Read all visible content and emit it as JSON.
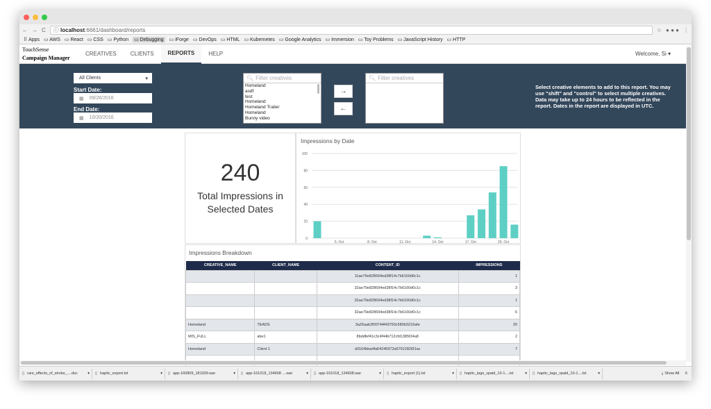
{
  "browser": {
    "url_host": "localhost",
    "url_rest": ":6661/dashboard/reports",
    "bookmarks": [
      "Apps",
      "AWS",
      "React",
      "CSS",
      "Python",
      "Debugging",
      "iForge",
      "DevOps",
      "HTML",
      "Kubernetes",
      "Google Analytics",
      "Immersion",
      "Toy Problems",
      "JavaScript History",
      "HTTP"
    ],
    "active_bookmark": "Debugging"
  },
  "app": {
    "logo_line1": "TouchSense",
    "logo_line2": "Campaign Manager",
    "nav": [
      "CREATIVES",
      "CLIENTS",
      "REPORTS",
      "HELP"
    ],
    "active_nav": "REPORTS",
    "welcome": "Welcome, Si"
  },
  "filters": {
    "client_select": "All Clients",
    "start_label": "Start Date:",
    "start_value": "09/26/2016",
    "end_label": "End Date:",
    "end_value": "10/20/2016",
    "left_filter_placeholder": "Filter creatives",
    "right_filter_placeholder": "Filter creatives",
    "creatives": [
      "Homeland",
      "asdf",
      "test",
      "Homeland",
      "Homeland Trailer",
      "Homeland",
      "Bunny video"
    ],
    "add_arrow": "→",
    "remove_arrow": "←",
    "help_text": "Select creative elements to add to this report. You may use \"shift\" and \"control\" to select multiple creatives. Data may take up to 24 hours to be reflected in the report. Dates in the report are displayed in UTC."
  },
  "summary": {
    "total": "240",
    "label": "Total Impressions in Selected Dates"
  },
  "chart_data": {
    "type": "bar",
    "title": "Impressions by Date",
    "ylim": [
      0,
      100
    ],
    "yticks": [
      0,
      20,
      40,
      60,
      80,
      100
    ],
    "xticks": [
      "5. Oct",
      "8. Oct",
      "11. Oct",
      "14. Oct",
      "17. Oct",
      "20. Oct"
    ],
    "x": [
      "3. Oct",
      "13. Oct",
      "14. Oct",
      "17. Oct",
      "18. Oct",
      "19. Oct",
      "20. Oct",
      "21. Oct"
    ],
    "values": [
      20,
      3,
      1,
      27,
      34,
      54,
      85,
      16
    ],
    "grid": true,
    "color": "#5ecfc4"
  },
  "breakdown": {
    "title": "Impressions Breakdown",
    "columns": [
      "CREATIVE_NAME",
      "CLIENT_NAME",
      "CONTENT_ID",
      "IMPRESSIONS"
    ],
    "rows": [
      [
        "",
        "",
        "11ae79e828694ed38f14c7b6160d0c1c",
        "1"
      ],
      [
        "",
        "",
        "32ae79e828694ed38f14c7b6160d0c1c",
        "3"
      ],
      [
        "",
        "",
        "32ae79e828694ed38f14c7b6160d0c1c",
        "1"
      ],
      [
        "",
        "",
        "32ae79e828694ed38f14c7b6160d0c1c",
        "6"
      ],
      [
        "Homeland",
        "TEADS",
        "3a26aab2f00744f49750c580b3216afe",
        "20"
      ],
      [
        "MIS_FULL",
        "abe1",
        "8bddfef41c3c4f44b712cfd1385f24a8",
        "2"
      ],
      [
        "Homeland",
        "Client 1",
        "d3164bba4fa64246972a57912826f1ac",
        "7"
      ],
      [
        "",
        "",
        "",
        ""
      ]
    ]
  },
  "downloads": {
    "items": [
      "rare_effects_of_stroke_....doc",
      "haptic_export.txt",
      "app-160809_181939.war",
      "app-161018_134608 ....war",
      "app-161018_134608.war",
      "haptic_export (1).txt",
      "haptic_tags_vpaid_10-1....txt",
      "haptic_tags_vpaid_10-1....txt"
    ],
    "show_all": "Show All",
    "close": "X"
  }
}
